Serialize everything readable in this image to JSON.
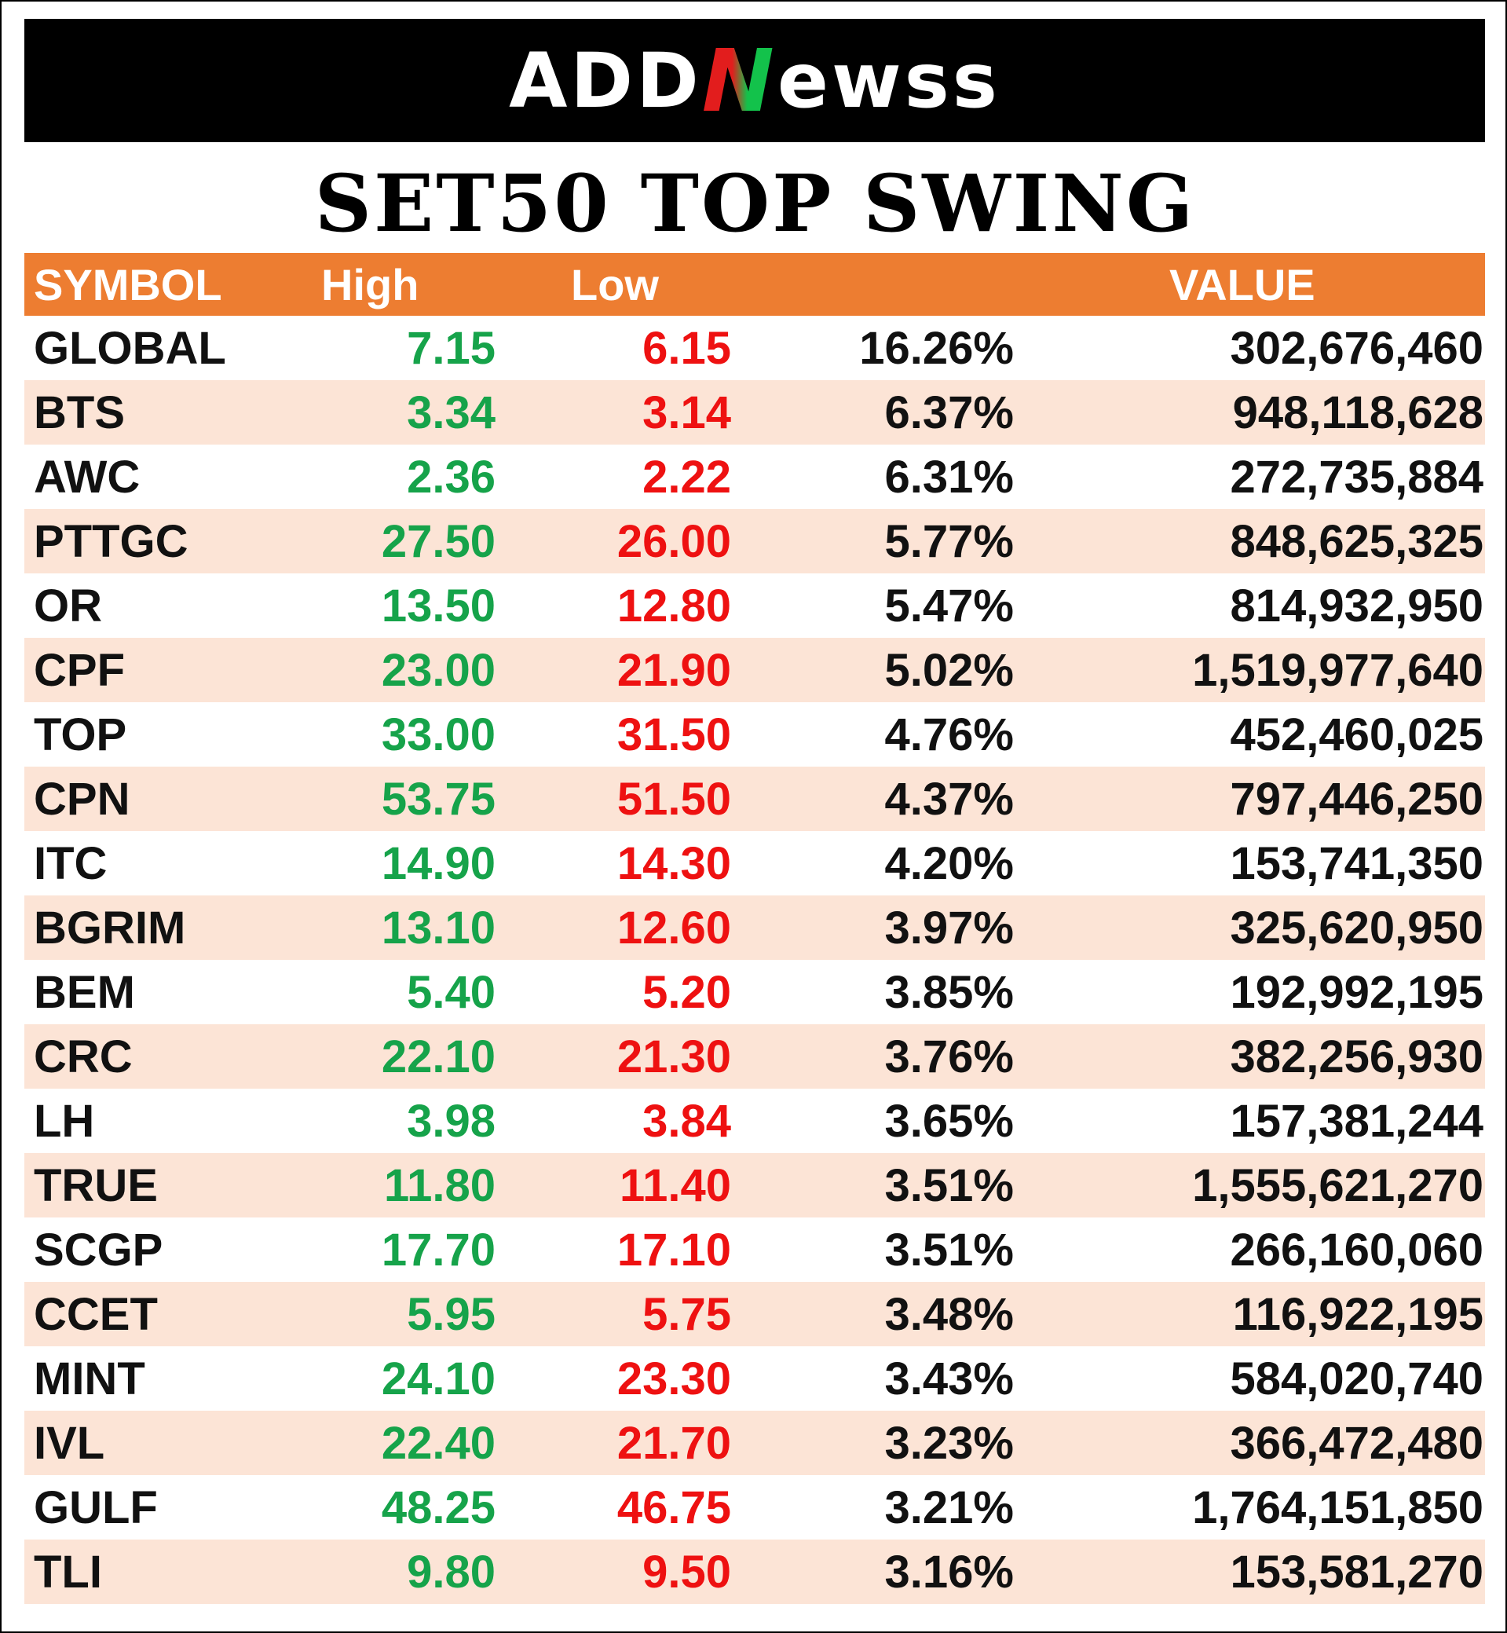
{
  "brand": {
    "logo_part1": "ADD",
    "logo_part2": "N",
    "logo_part3": "ewss"
  },
  "title": "SET50 TOP SWING",
  "table": {
    "headers": {
      "symbol": "SYMBOL",
      "high": "High",
      "low": "Low",
      "pct": "",
      "value": "VALUE"
    },
    "rows": [
      {
        "symbol": "GLOBAL",
        "high": "7.15",
        "low": "6.15",
        "pct": "16.26%",
        "value": "302,676,460"
      },
      {
        "symbol": "BTS",
        "high": "3.34",
        "low": "3.14",
        "pct": "6.37%",
        "value": "948,118,628"
      },
      {
        "symbol": "AWC",
        "high": "2.36",
        "low": "2.22",
        "pct": "6.31%",
        "value": "272,735,884"
      },
      {
        "symbol": "PTTGC",
        "high": "27.50",
        "low": "26.00",
        "pct": "5.77%",
        "value": "848,625,325"
      },
      {
        "symbol": "OR",
        "high": "13.50",
        "low": "12.80",
        "pct": "5.47%",
        "value": "814,932,950"
      },
      {
        "symbol": "CPF",
        "high": "23.00",
        "low": "21.90",
        "pct": "5.02%",
        "value": "1,519,977,640"
      },
      {
        "symbol": "TOP",
        "high": "33.00",
        "low": "31.50",
        "pct": "4.76%",
        "value": "452,460,025"
      },
      {
        "symbol": "CPN",
        "high": "53.75",
        "low": "51.50",
        "pct": "4.37%",
        "value": "797,446,250"
      },
      {
        "symbol": "ITC",
        "high": "14.90",
        "low": "14.30",
        "pct": "4.20%",
        "value": "153,741,350"
      },
      {
        "symbol": "BGRIM",
        "high": "13.10",
        "low": "12.60",
        "pct": "3.97%",
        "value": "325,620,950"
      },
      {
        "symbol": "BEM",
        "high": "5.40",
        "low": "5.20",
        "pct": "3.85%",
        "value": "192,992,195"
      },
      {
        "symbol": "CRC",
        "high": "22.10",
        "low": "21.30",
        "pct": "3.76%",
        "value": "382,256,930"
      },
      {
        "symbol": "LH",
        "high": "3.98",
        "low": "3.84",
        "pct": "3.65%",
        "value": "157,381,244"
      },
      {
        "symbol": "TRUE",
        "high": "11.80",
        "low": "11.40",
        "pct": "3.51%",
        "value": "1,555,621,270"
      },
      {
        "symbol": "SCGP",
        "high": "17.70",
        "low": "17.10",
        "pct": "3.51%",
        "value": "266,160,060"
      },
      {
        "symbol": "CCET",
        "high": "5.95",
        "low": "5.75",
        "pct": "3.48%",
        "value": "116,922,195"
      },
      {
        "symbol": "MINT",
        "high": "24.10",
        "low": "23.30",
        "pct": "3.43%",
        "value": "584,020,740"
      },
      {
        "symbol": "IVL",
        "high": "22.40",
        "low": "21.70",
        "pct": "3.23%",
        "value": "366,472,480"
      },
      {
        "symbol": "GULF",
        "high": "48.25",
        "low": "46.75",
        "pct": "3.21%",
        "value": "1,764,151,850"
      },
      {
        "symbol": "TLI",
        "high": "9.80",
        "low": "9.50",
        "pct": "3.16%",
        "value": "153,581,270"
      }
    ]
  },
  "colors": {
    "banner": "#000000",
    "header_bg": "#ed7d31",
    "alt_row_bg": "#fce4d6",
    "high_text": "#16a34a",
    "low_text": "#ee1111",
    "logo_red": "#e21d1d",
    "logo_green": "#13c24b"
  }
}
